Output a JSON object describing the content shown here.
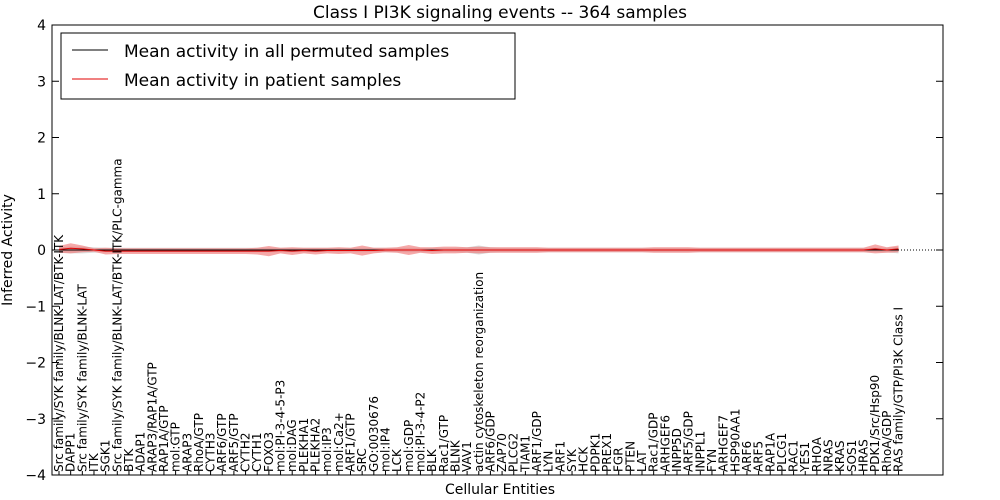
{
  "chart_data": {
    "type": "line",
    "title": "Class I PI3K signaling events -- 364 samples",
    "xlabel": "Cellular Entities",
    "ylabel": "Inferred Activity",
    "ylim": [
      -4,
      4
    ],
    "yticks": [
      -4,
      -3,
      -2,
      -1,
      0,
      1,
      2,
      3,
      4
    ],
    "ytick_labels": [
      "−4",
      "−3",
      "−2",
      "−1",
      "0",
      "1",
      "2",
      "3",
      "4"
    ],
    "legend_position": "top-left",
    "colors": {
      "permuted": "#000000",
      "patient": "#e00000",
      "permuted_band": "#bfbfbf",
      "patient_band": "#f07070"
    },
    "categories": [
      "Src family/SYK family/BLNK-LAT/BTK-ITK",
      "DAPP1",
      "Src family/SYK family/BLNK-LAT",
      "ITK",
      "SGK1",
      "Src family/SYK family/BLNK-LAT/BTK-ITK/PLC-gamma",
      "BTK",
      "ADAP1",
      "ARAP3/RAP1A/GTP",
      "RAP1A/GTP",
      "mol:GTP",
      "ARAP3",
      "RhoA/GTP",
      "CYTH3",
      "ARF6/GTP",
      "ARF5/GTP",
      "CYTH2",
      "CYTH1",
      "FOXO3",
      "mol:PI-3-4-5-P3",
      "mol:DAG",
      "PLEKHA1",
      "PLEKHA2",
      "mol:IP3",
      "mol:Ca2+",
      "ARF1/GTP",
      "SRC",
      "GO:0030676",
      "mol:IP4",
      "LCK",
      "mol:GDP",
      "mol:PI-3-4-P2",
      "BLK",
      "Rac1/GTP",
      "BLNK",
      "VAV1",
      "actin cytoskeleton reorganization",
      "ARF6/GDP",
      "ZAP70",
      "PLCG2",
      "TIAM1",
      "ARF1/GDP",
      "LYN",
      "ARF1",
      "SYK",
      "HCK",
      "PDPK1",
      "PREX1",
      "FGR",
      "PTEN",
      "LAT",
      "Rac1/GDP",
      "ARHGEF6",
      "INPP5D",
      "ARF5/GDP",
      "INPPL1",
      "FYN",
      "ARHGEF7",
      "HSP90AA1",
      "ARF6",
      "ARF5",
      "RAP1A",
      "PLCG1",
      "RAC1",
      "YES1",
      "RHOA",
      "NRAS",
      "KRAS",
      "SOS1",
      "HRAS",
      "PDK1/Src/Hsp90",
      "RhoA/GDP",
      "RAS family/GTP/PI3K Class I"
    ],
    "series": [
      {
        "name": "Mean activity in all permuted samples",
        "color": "#000000",
        "values": [
          0.0,
          0.0,
          0.0,
          0.0,
          0.0,
          0.0,
          0.0,
          0.0,
          0.0,
          0.0,
          0.0,
          0.0,
          0.0,
          0.0,
          0.0,
          0.0,
          0.0,
          0.0,
          0.0,
          0.0,
          0.0,
          0.0,
          0.0,
          0.0,
          0.0,
          0.0,
          0.0,
          0.0,
          0.0,
          0.0,
          0.0,
          0.0,
          0.0,
          0.0,
          0.0,
          0.0,
          0.0,
          0.0,
          0.0,
          0.0,
          0.0,
          0.0,
          0.0,
          0.0,
          0.0,
          0.0,
          0.0,
          0.0,
          0.0,
          0.0,
          0.0,
          0.0,
          0.0,
          0.0,
          0.0,
          0.0,
          0.0,
          0.0,
          0.0,
          0.0,
          0.0,
          0.0,
          0.0,
          0.0,
          0.0,
          0.0,
          0.0,
          0.0,
          0.0,
          0.0,
          0.0,
          0.0,
          0.0
        ],
        "band": [
          0.05,
          0.06,
          0.06,
          0.05,
          0.04,
          0.04,
          0.04,
          0.04,
          0.04,
          0.04,
          0.04,
          0.04,
          0.04,
          0.04,
          0.04,
          0.04,
          0.04,
          0.04,
          0.04,
          0.04,
          0.04,
          0.04,
          0.04,
          0.04,
          0.04,
          0.04,
          0.04,
          0.04,
          0.04,
          0.04,
          0.04,
          0.04,
          0.04,
          0.04,
          0.04,
          0.05,
          0.08,
          0.05,
          0.04,
          0.04,
          0.04,
          0.04,
          0.04,
          0.04,
          0.04,
          0.04,
          0.04,
          0.04,
          0.04,
          0.04,
          0.04,
          0.04,
          0.04,
          0.04,
          0.04,
          0.04,
          0.04,
          0.04,
          0.04,
          0.04,
          0.04,
          0.04,
          0.04,
          0.04,
          0.04,
          0.04,
          0.04,
          0.04,
          0.04,
          0.04,
          0.04,
          0.04,
          0.06
        ]
      },
      {
        "name": "Mean activity in patient samples",
        "color": "#e00000",
        "values": [
          0.01,
          0.03,
          0.02,
          0.0,
          -0.02,
          -0.02,
          -0.02,
          -0.02,
          -0.02,
          -0.02,
          -0.02,
          -0.02,
          -0.02,
          -0.02,
          -0.02,
          -0.02,
          -0.02,
          -0.02,
          -0.02,
          -0.01,
          -0.02,
          -0.01,
          -0.02,
          -0.01,
          -0.01,
          -0.01,
          -0.01,
          -0.01,
          0.0,
          0.0,
          0.0,
          0.0,
          -0.01,
          0.0,
          0.0,
          0.0,
          0.0,
          0.0,
          0.0,
          0.0,
          0.0,
          0.0,
          0.0,
          0.0,
          0.0,
          0.0,
          0.0,
          0.0,
          0.0,
          0.0,
          0.0,
          0.0,
          0.0,
          0.0,
          0.0,
          0.0,
          0.0,
          0.0,
          0.0,
          0.0,
          0.0,
          0.0,
          0.0,
          0.0,
          0.0,
          0.0,
          0.0,
          0.0,
          0.0,
          0.0,
          0.02,
          0.0,
          0.02
        ],
        "band": [
          0.06,
          0.09,
          0.06,
          0.03,
          0.06,
          0.05,
          0.05,
          0.05,
          0.05,
          0.05,
          0.05,
          0.05,
          0.05,
          0.05,
          0.05,
          0.05,
          0.05,
          0.06,
          0.09,
          0.05,
          0.07,
          0.05,
          0.06,
          0.05,
          0.06,
          0.05,
          0.09,
          0.05,
          0.04,
          0.05,
          0.09,
          0.05,
          0.06,
          0.06,
          0.06,
          0.05,
          0.06,
          0.05,
          0.05,
          0.05,
          0.05,
          0.05,
          0.04,
          0.04,
          0.04,
          0.04,
          0.04,
          0.04,
          0.04,
          0.04,
          0.04,
          0.05,
          0.05,
          0.05,
          0.05,
          0.04,
          0.04,
          0.04,
          0.04,
          0.04,
          0.04,
          0.04,
          0.04,
          0.04,
          0.04,
          0.04,
          0.04,
          0.04,
          0.04,
          0.04,
          0.08,
          0.05,
          0.06
        ]
      }
    ]
  }
}
